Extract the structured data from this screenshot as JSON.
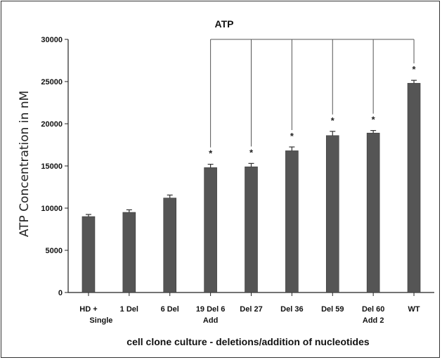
{
  "chart_data": {
    "type": "bar",
    "title": "ATP",
    "ylabel": "ATP Concentration in nM",
    "xlabel": "cell clone culture - deletions/addition of nucleotides",
    "categories": [
      [
        "HD +",
        "Single"
      ],
      [
        "1 Del"
      ],
      [
        "6 Del"
      ],
      [
        "19 Del 6",
        "Add"
      ],
      [
        "Del 27"
      ],
      [
        "Del 36"
      ],
      [
        "Del 59"
      ],
      [
        "Del 60",
        "Add 2"
      ],
      [
        "WT"
      ]
    ],
    "values": [
      9000,
      9500,
      11200,
      14800,
      14900,
      16800,
      18600,
      18900,
      24800
    ],
    "errors": [
      250,
      300,
      350,
      400,
      400,
      450,
      500,
      300,
      350
    ],
    "significance": [
      "",
      "",
      "",
      "*",
      "*",
      "*",
      "*",
      "*",
      "*"
    ],
    "ylim": [
      0,
      30000
    ],
    "yticks": [
      "0",
      "5000",
      "10000",
      "15000",
      "20000",
      "25000",
      "30000"
    ],
    "grid": false,
    "bar_color": "#555555"
  }
}
